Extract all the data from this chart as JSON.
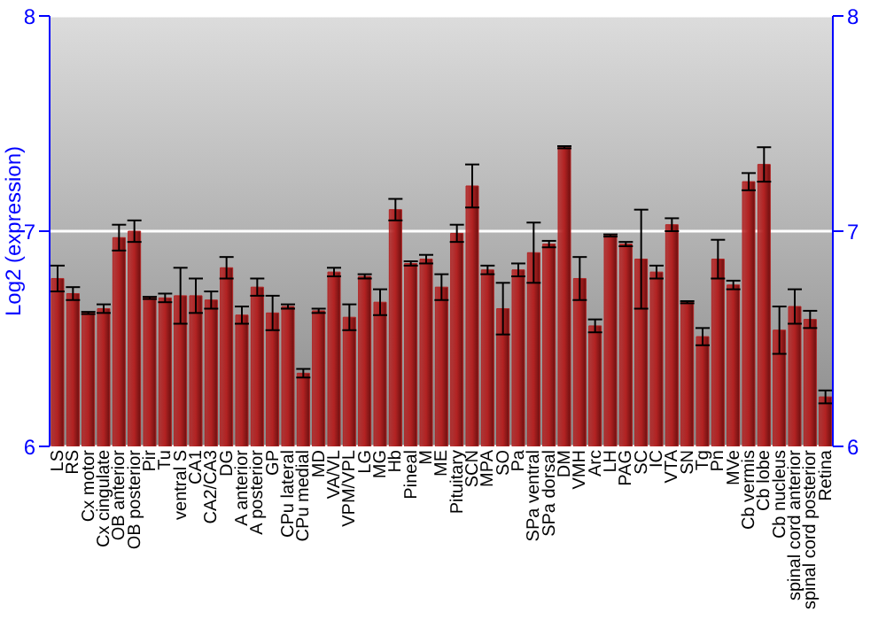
{
  "chart_data": {
    "type": "bar",
    "ylabel": "Log2 (expression)",
    "categories": [
      "LS",
      "RS",
      "Cx motor",
      "Cx cingulate",
      "OB anterior",
      "OB posterior",
      "Pir",
      "Tu",
      "ventral S",
      "CA1",
      "CA2/CA3",
      "DG",
      "A anterior",
      "A posterior",
      "GP",
      "CPu lateral",
      "CPu medial",
      "MD",
      "VA/VL",
      "VPM/VPL",
      "LG",
      "MG",
      "Hb",
      "Pineal",
      "M",
      "ME",
      "Pituitary",
      "SCN",
      "MPA",
      "SO",
      "Pa",
      "SPa ventral",
      "SPa dorsal",
      "DM",
      "VMH",
      "Arc",
      "LH",
      "PAG",
      "SC",
      "IC",
      "VTA",
      "SN",
      "Tg",
      "Pn",
      "MVe",
      "Cb vermis",
      "Cb lobe",
      "Cb nucleus",
      "spinal cord anterior",
      "spinal cord posterior",
      "Retina"
    ],
    "values": [
      6.78,
      6.71,
      6.62,
      6.64,
      6.97,
      7.0,
      6.69,
      6.69,
      6.7,
      6.7,
      6.68,
      6.83,
      6.61,
      6.74,
      6.62,
      6.65,
      6.34,
      6.63,
      6.81,
      6.6,
      6.79,
      6.67,
      7.1,
      6.85,
      6.87,
      6.74,
      6.99,
      7.21,
      6.82,
      6.64,
      6.82,
      6.9,
      6.94,
      7.39,
      6.78,
      6.56,
      6.98,
      6.94,
      6.87,
      6.81,
      7.03,
      6.67,
      6.51,
      6.87,
      6.75,
      7.23,
      7.31,
      6.54,
      6.65,
      6.59,
      6.23
    ],
    "errors": [
      0.06,
      0.03,
      0.005,
      0.02,
      0.06,
      0.05,
      0.005,
      0.02,
      0.13,
      0.08,
      0.04,
      0.05,
      0.04,
      0.04,
      0.08,
      0.01,
      0.02,
      0.01,
      0.02,
      0.06,
      0.01,
      0.06,
      0.05,
      0.01,
      0.02,
      0.06,
      0.04,
      0.1,
      0.02,
      0.12,
      0.03,
      0.14,
      0.015,
      0.005,
      0.1,
      0.03,
      0.005,
      0.01,
      0.23,
      0.03,
      0.03,
      0.005,
      0.04,
      0.09,
      0.02,
      0.04,
      0.08,
      0.11,
      0.08,
      0.04,
      0.03
    ],
    "color": "#b22222",
    "ylim": [
      6,
      8
    ],
    "yticks": [
      6,
      7,
      8
    ],
    "y2lim": [
      6,
      8
    ],
    "y2ticks": [
      6,
      7,
      8
    ],
    "grid": "y"
  }
}
